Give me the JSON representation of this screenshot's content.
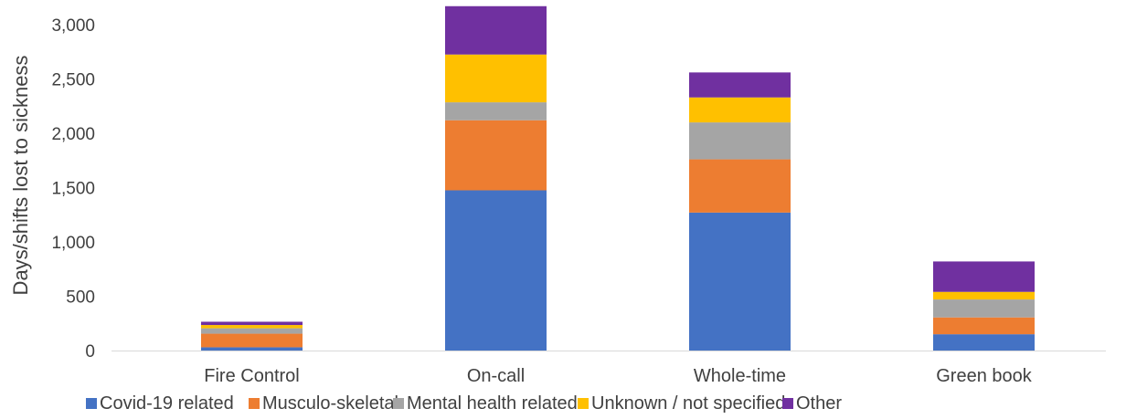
{
  "chart_data": {
    "type": "bar",
    "stacked": true,
    "title": "",
    "xlabel": "",
    "ylabel": "Days/shifts lost to sickness",
    "ylim": [
      0,
      3200
    ],
    "yticks": [
      0,
      500,
      1000,
      1500,
      2000,
      2500,
      3000
    ],
    "ytick_labels": [
      "0",
      "500",
      "1,000",
      "1,500",
      "2,000",
      "2,500",
      "3,000"
    ],
    "grid": false,
    "legend_position": "bottom",
    "categories": [
      "Fire Control",
      "On-call",
      "Whole-time",
      "Green book"
    ],
    "series": [
      {
        "name": "Covid-19 related",
        "color": "#4472C4",
        "values": [
          30,
          1475,
          1270,
          150
        ]
      },
      {
        "name": "Musculo-skeletal",
        "color": "#ED7D31",
        "values": [
          125,
          645,
          490,
          155
        ]
      },
      {
        "name": "Mental health related",
        "color": "#A5A5A5",
        "values": [
          50,
          165,
          340,
          165
        ]
      },
      {
        "name": "Unknown / not specified",
        "color": "#FFC000",
        "values": [
          30,
          440,
          230,
          70
        ]
      },
      {
        "name": "Other",
        "color": "#7030A0",
        "values": [
          30,
          445,
          230,
          280
        ]
      }
    ]
  }
}
